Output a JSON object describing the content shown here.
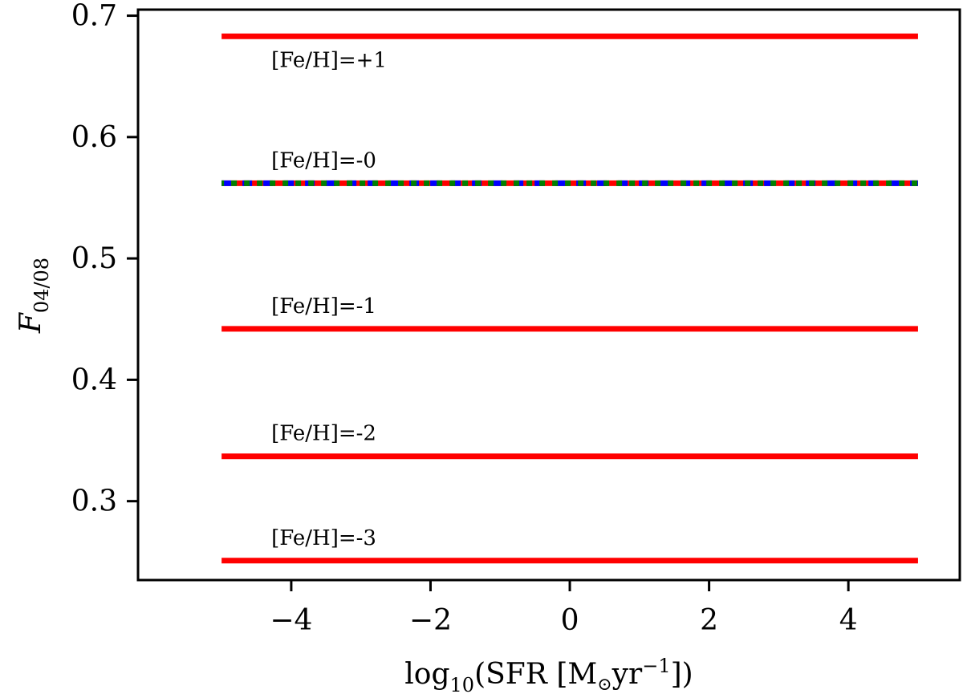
{
  "chart_data": {
    "type": "line",
    "title": "",
    "xlabel": {
      "main": "log",
      "sub": "10",
      "paren_open": "(SFR [M",
      "sun": "⊙",
      "unit": "yr",
      "exp": "−1",
      "paren_close": "])"
    },
    "ylabel": {
      "main": "F",
      "sub": "04/08"
    },
    "xlim": [
      -6.2,
      5.6
    ],
    "ylim": [
      0.235,
      0.705
    ],
    "xticks": [
      -4,
      -2,
      0,
      2,
      4
    ],
    "xtick_labels": [
      "−4",
      "−2",
      "0",
      "2",
      "4"
    ],
    "yticks": [
      0.3,
      0.4,
      0.5,
      0.6,
      0.7
    ],
    "ytick_labels": [
      "0.3",
      "0.4",
      "0.5",
      "0.6",
      "0.7"
    ],
    "grid": false,
    "series": [
      {
        "label": "[Fe/H]=+1",
        "x": [
          -5,
          5
        ],
        "y": [
          0.683,
          0.683
        ],
        "color": "#ff0000",
        "style": "solid"
      },
      {
        "label": "[Fe/H]=-0",
        "x": [
          -5,
          5
        ],
        "y": [
          0.562,
          0.562
        ],
        "color": "#ff0000",
        "style": "solid"
      },
      {
        "label": "",
        "x": [
          -5,
          5
        ],
        "y": [
          0.562,
          0.562
        ],
        "color": "#0000ff",
        "style": "dashed"
      },
      {
        "label": "",
        "x": [
          -5,
          5
        ],
        "y": [
          0.562,
          0.562
        ],
        "color": "#008000",
        "style": "dotted"
      },
      {
        "label": "[Fe/H]=-1",
        "x": [
          -5,
          5
        ],
        "y": [
          0.442,
          0.442
        ],
        "color": "#ff0000",
        "style": "solid"
      },
      {
        "label": "[Fe/H]=-2",
        "x": [
          -5,
          5
        ],
        "y": [
          0.337,
          0.337
        ],
        "color": "#ff0000",
        "style": "solid"
      },
      {
        "label": "[Fe/H]=-3",
        "x": [
          -5,
          5
        ],
        "y": [
          0.251,
          0.251
        ],
        "color": "#ff0000",
        "style": "solid"
      }
    ]
  }
}
